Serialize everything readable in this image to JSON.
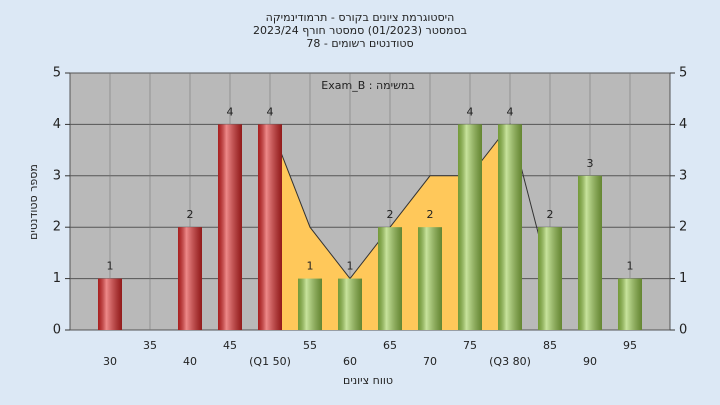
{
  "chart_data": {
    "type": "histogram",
    "title": [
      "היסטוגרמת ציונים בקורס - תרמודינמיקה",
      "בסמסטר  (01/2023)  סמסטר חורף 2023/24",
      "סטודנטים רשומים - 78"
    ],
    "annotation": "במשימה : Exam_B",
    "xlabel": "טווח ציונים",
    "ylabel": "מספר סטודנטים",
    "x": [
      30,
      35,
      40,
      45,
      50,
      55,
      60,
      65,
      70,
      75,
      80,
      85,
      90,
      95
    ],
    "values": [
      1,
      0,
      2,
      4,
      4,
      1,
      1,
      2,
      2,
      4,
      4,
      2,
      3,
      1
    ],
    "colors": [
      "#e02828",
      "#e02828",
      "#e02828",
      "#e02828",
      "#e02828",
      "#9acd4c",
      "#9acd4c",
      "#9acd4c",
      "#9acd4c",
      "#9acd4c",
      "#9acd4c",
      "#9acd4c",
      "#9acd4c",
      "#9acd4c"
    ],
    "area": {
      "color": "#ffc85a",
      "x": [
        50,
        55,
        60,
        65,
        70,
        75,
        80
      ],
      "values": [
        4,
        2,
        1,
        2,
        3,
        3,
        4
      ]
    },
    "line": {
      "color": "#333333",
      "x": [
        50,
        55,
        60,
        65,
        70,
        75,
        80,
        85
      ],
      "values": [
        4,
        2,
        1,
        2,
        3,
        3,
        4,
        1
      ]
    },
    "xlim": [
      25,
      100
    ],
    "xticks": [
      30,
      35,
      40,
      45,
      {
        "value": 50,
        "label": "(Q1 50)"
      },
      55,
      60,
      65,
      70,
      75,
      {
        "value": 80,
        "label": "(Q3 80)"
      },
      85,
      90,
      95
    ],
    "ylim": [
      0,
      5
    ],
    "yticks": [
      0,
      1,
      2,
      3,
      4,
      5
    ],
    "y2lim": [
      0,
      5
    ],
    "y2ticks": [
      0,
      1,
      2,
      3,
      4,
      5
    ],
    "grid": true
  }
}
